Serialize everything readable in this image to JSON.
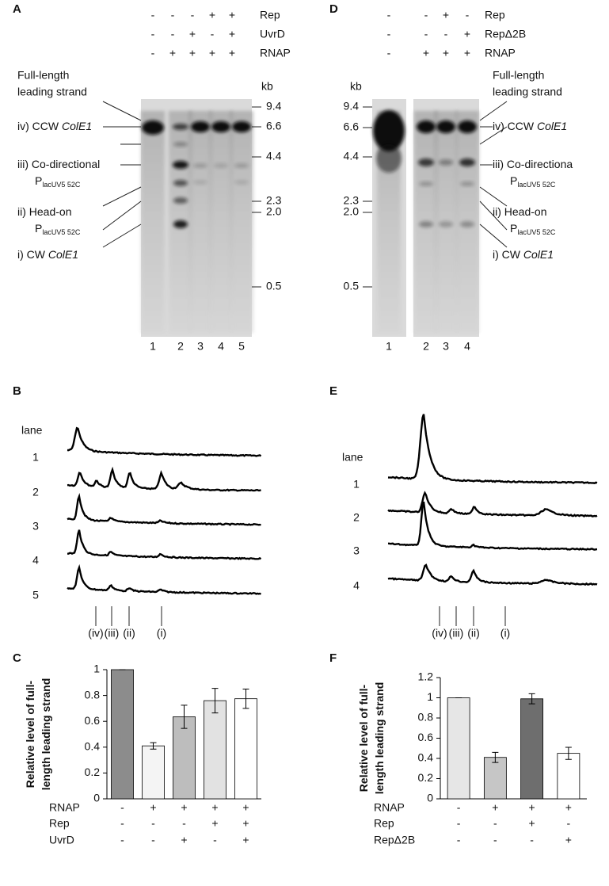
{
  "panels": {
    "A": "A",
    "B": "B",
    "C": "C",
    "D": "D",
    "E": "E",
    "F": "F"
  },
  "gel_A": {
    "conditions": [
      {
        "name": "Rep",
        "signs": [
          "-",
          "-",
          "-",
          "+",
          "+"
        ]
      },
      {
        "name": "UvrD",
        "signs": [
          "-",
          "-",
          "+",
          "-",
          "+"
        ]
      },
      {
        "name": "RNAP",
        "signs": [
          "-",
          "+",
          "+",
          "+",
          "+"
        ]
      }
    ],
    "lanes": [
      "1",
      "2",
      "3",
      "4",
      "5"
    ],
    "unit": "kb",
    "markers": [
      "9.4",
      "6.6",
      "4.4",
      "2.3",
      "2.0",
      "0.5"
    ],
    "labels": [
      {
        "lines": [
          "Full-length",
          "leading strand"
        ]
      },
      {
        "text": "iv) CCW ",
        "italic": "ColE1"
      },
      {
        "text": "iii) Co-directional",
        "p": "P",
        "sub": "lacUV5 52C"
      },
      {
        "text": "ii) Head-on",
        "p": "P",
        "sub": "lacUV5 52C"
      },
      {
        "text": "i) CW ",
        "italic": "ColE1"
      }
    ]
  },
  "gel_D": {
    "conditions": [
      {
        "name": "Rep",
        "signs": [
          "-",
          "-",
          "+",
          "-"
        ]
      },
      {
        "name": "RepΔ2B",
        "signs": [
          "-",
          "-",
          "-",
          "+"
        ]
      },
      {
        "name": "RNAP",
        "signs": [
          "-",
          "+",
          "+",
          "+"
        ]
      }
    ],
    "lanes": [
      "1",
      "2",
      "3",
      "4"
    ],
    "unit": "kb",
    "markers": [
      "9.4",
      "6.6",
      "4.4",
      "2.3",
      "2.0",
      "0.5"
    ],
    "labels": [
      {
        "lines": [
          "Full-length",
          "leading strand"
        ]
      },
      {
        "text": "iv) CCW ",
        "italic": "ColE1"
      },
      {
        "text": "iii) Co-directiona",
        "p": "P",
        "sub": "lacUV5 52C"
      },
      {
        "text": "ii) Head-on",
        "p": "P",
        "sub": "lacUV5 52C"
      },
      {
        "text": "i) CW ",
        "italic": "ColE1"
      }
    ]
  },
  "trace_B": {
    "lane_title": "lane",
    "lanes": [
      "1",
      "2",
      "3",
      "4",
      "5"
    ],
    "peaks": [
      "(iv)",
      "(iii)",
      "(ii)",
      "(i)"
    ]
  },
  "trace_E": {
    "lane_title": "lane",
    "lanes": [
      "1",
      "2",
      "3",
      "4"
    ],
    "peaks": [
      "(iv)",
      "(iii)",
      "(ii)",
      "(i)"
    ]
  },
  "chart_data": [
    {
      "type": "bar",
      "y_label": [
        "Relative level of full-",
        "length leading strand"
      ],
      "categories": [
        null,
        null,
        null,
        null,
        null
      ],
      "values": [
        1,
        0.41,
        0.635,
        0.76,
        0.775
      ],
      "errors": [
        0,
        0.025,
        0.09,
        0.095,
        0.075
      ],
      "colors": [
        "#8c8c8c",
        "#f4f4f4",
        "#bdbdbd",
        "#e2e2e2",
        "#ffffff"
      ],
      "ylim": [
        0,
        1
      ],
      "yticks": [
        0,
        0.2,
        0.4,
        0.6,
        0.8,
        1
      ],
      "conditions": [
        {
          "name": "RNAP",
          "signs": [
            "-",
            "+",
            "+",
            "+",
            "+"
          ]
        },
        {
          "name": "Rep",
          "signs": [
            "-",
            "-",
            "-",
            "+",
            "+"
          ]
        },
        {
          "name": "UvrD",
          "signs": [
            "-",
            "-",
            "+",
            "-",
            "+"
          ]
        }
      ]
    },
    {
      "type": "bar",
      "y_label": [
        "Relative level of full-",
        "length leading strand"
      ],
      "categories": [
        null,
        null,
        null,
        null
      ],
      "values": [
        1,
        0.41,
        0.99,
        0.45
      ],
      "errors": [
        0,
        0.05,
        0.05,
        0.06
      ],
      "colors": [
        "#e6e6e6",
        "#c6c6c6",
        "#6e6e6e",
        "#ffffff"
      ],
      "ylim": [
        0,
        1.2
      ],
      "yticks": [
        0,
        0.2,
        0.4,
        0.6,
        0.8,
        1,
        1.2
      ],
      "conditions": [
        {
          "name": "RNAP",
          "signs": [
            "-",
            "+",
            "+",
            "+"
          ]
        },
        {
          "name": "Rep",
          "signs": [
            "-",
            "-",
            "+",
            "-"
          ]
        },
        {
          "name": "RepΔ2B",
          "signs": [
            "-",
            "-",
            "-",
            "+"
          ]
        }
      ]
    }
  ]
}
